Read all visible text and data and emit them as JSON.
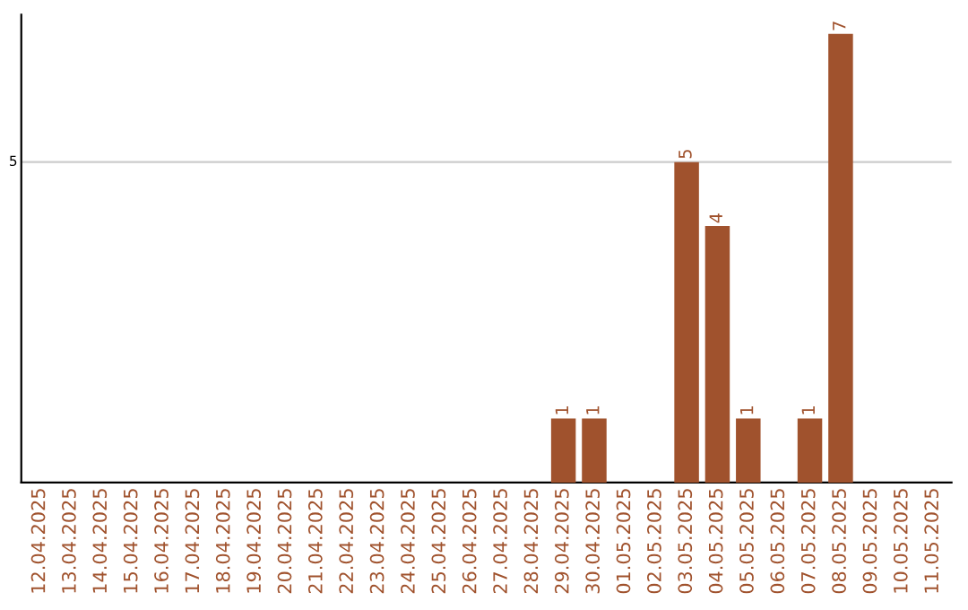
{
  "chart_data": {
    "type": "bar",
    "categories": [
      "12.04.2025",
      "13.04.2025",
      "14.04.2025",
      "15.04.2025",
      "16.04.2025",
      "17.04.2025",
      "18.04.2025",
      "19.04.2025",
      "20.04.2025",
      "21.04.2025",
      "22.04.2025",
      "23.04.2025",
      "24.04.2025",
      "25.04.2025",
      "26.04.2025",
      "27.04.2025",
      "28.04.2025",
      "29.04.2025",
      "30.04.2025",
      "01.05.2025",
      "02.05.2025",
      "03.05.2025",
      "04.05.2025",
      "05.05.2025",
      "06.05.2025",
      "07.05.2025",
      "08.05.2025",
      "09.05.2025",
      "10.05.2025",
      "11.05.2025"
    ],
    "values": [
      null,
      null,
      null,
      null,
      null,
      null,
      null,
      null,
      null,
      null,
      null,
      null,
      null,
      null,
      null,
      null,
      null,
      1,
      1,
      null,
      null,
      5,
      4,
      1,
      null,
      1,
      7,
      null,
      null,
      null
    ],
    "data_labels": true,
    "color": "#a0522d",
    "ylim": [
      0,
      7.3
    ],
    "ref_lines": [
      {
        "axis": "y",
        "value": 5,
        "label": "5",
        "color": "#cccccc"
      }
    ]
  }
}
